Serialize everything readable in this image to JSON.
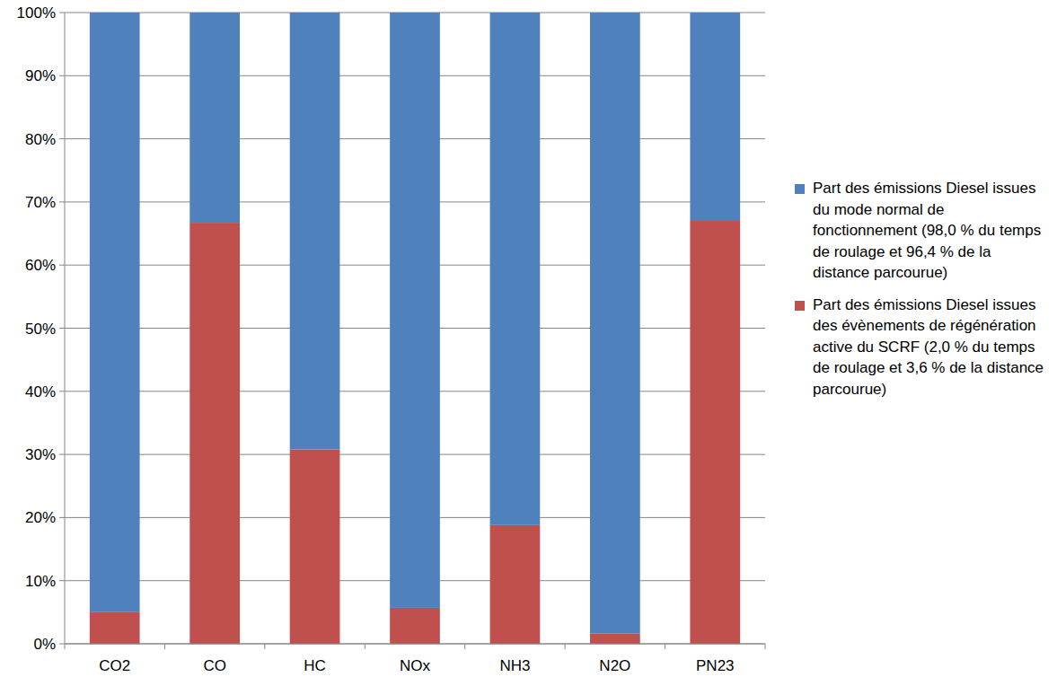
{
  "chart_data": {
    "type": "bar",
    "stacked": true,
    "grid": true,
    "legend": "right",
    "categories": [
      "CO2",
      "CO",
      "HC",
      "NOx",
      "NH3",
      "N2O",
      "PN23"
    ],
    "series": [
      {
        "name": "Part des émissions Diesel issues des évènements de régénération active du SCRF (2,0 % du temps de roulage et 3,6 % de la distance parcourue)",
        "color": "#c0504d",
        "values": [
          5,
          66.7,
          30.8,
          5.7,
          18.8,
          1.6,
          67
        ]
      },
      {
        "name": "Part des émissions Diesel issues du mode normal de fonctionnement (98,0 % du temps de roulage et 96,4 % de la distance parcourue)",
        "color": "#4f81bd",
        "values": [
          95,
          33.3,
          69.2,
          94.3,
          81.2,
          98.4,
          33
        ]
      }
    ],
    "ylim": [
      0,
      100
    ],
    "yticks": [
      {
        "value": 0,
        "label": "0%"
      },
      {
        "value": 10,
        "label": "10%"
      },
      {
        "value": 20,
        "label": "20%"
      },
      {
        "value": 30,
        "label": "30%"
      },
      {
        "value": 40,
        "label": "40%"
      },
      {
        "value": 50,
        "label": "50%"
      },
      {
        "value": 60,
        "label": "60%"
      },
      {
        "value": 70,
        "label": "70%"
      },
      {
        "value": 80,
        "label": "80%"
      },
      {
        "value": 90,
        "label": "90%"
      },
      {
        "value": 100,
        "label": "100%"
      }
    ]
  }
}
